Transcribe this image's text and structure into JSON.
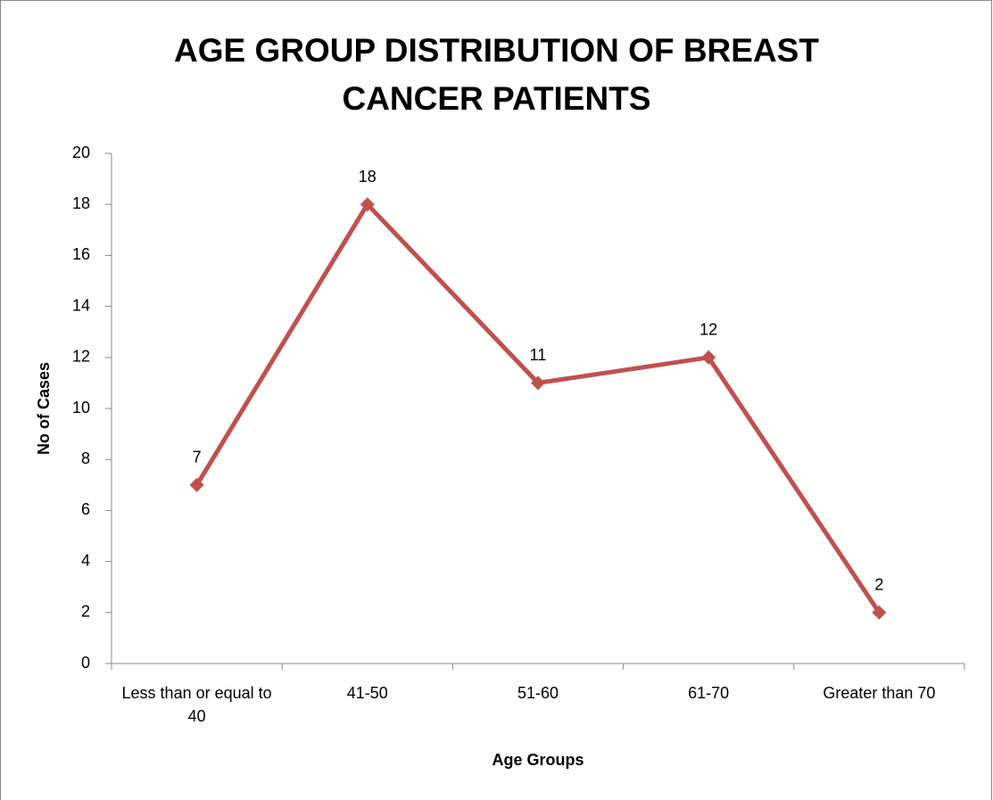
{
  "chart_data": {
    "type": "line",
    "title": "AGE GROUP DISTRIBUTION OF BREAST CANCER PATIENTS",
    "x_label": "Age Groups",
    "y_label": "No of Cases",
    "categories": [
      "Less than or equal to 40",
      "41-50",
      "51-60",
      "61-70",
      "Greater than 70"
    ],
    "values": [
      7,
      18,
      11,
      12,
      2
    ],
    "color": "#c0504d",
    "ylim": [
      0,
      20
    ],
    "yticks": [
      0,
      2,
      4,
      6,
      8,
      10,
      12,
      14,
      16,
      18,
      20
    ],
    "grid": false
  }
}
